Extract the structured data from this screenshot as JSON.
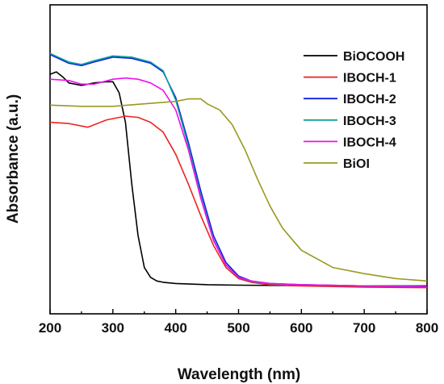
{
  "chart_data": {
    "type": "line",
    "title": "",
    "xlabel": "Wavelength (nm)",
    "ylabel": "Absorbance (a.u.)",
    "xlim": [
      200,
      800
    ],
    "ylim": [
      0,
      1
    ],
    "x_ticks": [
      200,
      300,
      400,
      500,
      600,
      700,
      800
    ],
    "x_tick_labels": [
      "200",
      "300",
      "400",
      "500",
      "600",
      "700",
      "800"
    ],
    "y_ticks_shown": false,
    "grid": false,
    "legend_position": "top-right",
    "series": [
      {
        "name": "BiOCOOH",
        "color": "#000000",
        "x": [
          200,
          210,
          220,
          230,
          250,
          270,
          290,
          300,
          310,
          320,
          330,
          340,
          350,
          360,
          370,
          380,
          400,
          450,
          500,
          600,
          700,
          800
        ],
        "y": [
          0.875,
          0.885,
          0.865,
          0.84,
          0.83,
          0.84,
          0.845,
          0.845,
          0.8,
          0.68,
          0.43,
          0.22,
          0.09,
          0.05,
          0.035,
          0.03,
          0.025,
          0.02,
          0.018,
          0.016,
          0.015,
          0.015
        ]
      },
      {
        "name": "IBOCH-1",
        "color": "#ee2222",
        "x": [
          200,
          230,
          260,
          290,
          320,
          340,
          360,
          380,
          400,
          420,
          440,
          460,
          480,
          500,
          520,
          550,
          600,
          700,
          800
        ],
        "y": [
          0.68,
          0.675,
          0.66,
          0.69,
          0.705,
          0.7,
          0.68,
          0.64,
          0.55,
          0.43,
          0.3,
          0.18,
          0.09,
          0.045,
          0.03,
          0.02,
          0.015,
          0.01,
          0.008
        ]
      },
      {
        "name": "IBOCH-2",
        "color": "#1122dd",
        "x": [
          200,
          230,
          250,
          270,
          300,
          330,
          360,
          380,
          400,
          420,
          440,
          460,
          480,
          500,
          520,
          550,
          600,
          700,
          800
        ],
        "y": [
          0.955,
          0.92,
          0.91,
          0.925,
          0.945,
          0.94,
          0.92,
          0.885,
          0.78,
          0.6,
          0.4,
          0.22,
          0.11,
          0.055,
          0.035,
          0.025,
          0.02,
          0.015,
          0.012
        ]
      },
      {
        "name": "IBOCH-3",
        "color": "#11a0a0",
        "x": [
          200,
          230,
          250,
          270,
          300,
          330,
          360,
          380,
          400,
          420,
          440,
          460,
          480,
          500,
          520,
          550,
          600,
          700,
          800
        ],
        "y": [
          0.96,
          0.925,
          0.915,
          0.93,
          0.95,
          0.945,
          0.925,
          0.89,
          0.77,
          0.585,
          0.38,
          0.205,
          0.1,
          0.05,
          0.033,
          0.024,
          0.02,
          0.015,
          0.012
        ]
      },
      {
        "name": "IBOCH-4",
        "color": "#ee11ee",
        "x": [
          200,
          230,
          250,
          270,
          300,
          320,
          340,
          360,
          380,
          400,
          420,
          440,
          460,
          480,
          500,
          520,
          550,
          600,
          700,
          800
        ],
        "y": [
          0.855,
          0.85,
          0.835,
          0.835,
          0.855,
          0.86,
          0.855,
          0.84,
          0.81,
          0.73,
          0.57,
          0.37,
          0.2,
          0.1,
          0.05,
          0.035,
          0.025,
          0.02,
          0.015,
          0.012
        ]
      },
      {
        "name": "BiOI",
        "color": "#999922",
        "x": [
          200,
          250,
          300,
          350,
          400,
          420,
          440,
          450,
          470,
          490,
          510,
          530,
          550,
          570,
          600,
          650,
          700,
          750,
          800
        ],
        "y": [
          0.75,
          0.745,
          0.745,
          0.755,
          0.765,
          0.775,
          0.775,
          0.755,
          0.73,
          0.67,
          0.57,
          0.45,
          0.34,
          0.25,
          0.16,
          0.09,
          0.065,
          0.045,
          0.035
        ]
      }
    ]
  }
}
